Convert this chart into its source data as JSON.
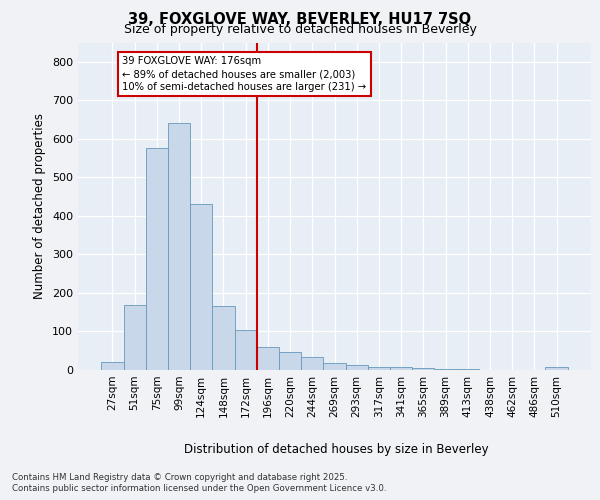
{
  "title_line1": "39, FOXGLOVE WAY, BEVERLEY, HU17 7SQ",
  "title_line2": "Size of property relative to detached houses in Beverley",
  "xlabel": "Distribution of detached houses by size in Beverley",
  "ylabel": "Number of detached properties",
  "categories": [
    "27sqm",
    "51sqm",
    "75sqm",
    "99sqm",
    "124sqm",
    "148sqm",
    "172sqm",
    "196sqm",
    "220sqm",
    "244sqm",
    "269sqm",
    "293sqm",
    "317sqm",
    "341sqm",
    "365sqm",
    "389sqm",
    "413sqm",
    "438sqm",
    "462sqm",
    "486sqm",
    "510sqm"
  ],
  "bar_heights": [
    22,
    170,
    575,
    640,
    430,
    165,
    105,
    60,
    48,
    35,
    18,
    12,
    9,
    7,
    5,
    3,
    2,
    1,
    1,
    0,
    7
  ],
  "bar_color": "#c8d8ea",
  "bar_edge_color": "#6699bb",
  "vline_color": "#cc0000",
  "vline_pos": 6.5,
  "annotation_text": "39 FOXGLOVE WAY: 176sqm\n← 89% of detached houses are smaller (2,003)\n10% of semi-detached houses are larger (231) →",
  "ylim_max": 850,
  "yticks": [
    0,
    100,
    200,
    300,
    400,
    500,
    600,
    700,
    800
  ],
  "bg_color": "#e8eef5",
  "fig_bg_color": "#f0f2f5",
  "footer_line1": "Contains HM Land Registry data © Crown copyright and database right 2025.",
  "footer_line2": "Contains public sector information licensed under the Open Government Licence v3.0."
}
